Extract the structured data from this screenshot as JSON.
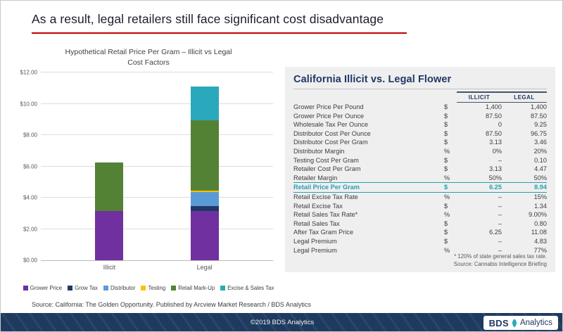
{
  "title": "As a result, legal retailers still face significant cost disadvantage",
  "chart": {
    "title_line1": "Hypothetical Retail Price Per Gram – Illicit vs Legal",
    "title_line2": "Cost Factors"
  },
  "chart_data": {
    "type": "bar",
    "stacked": true,
    "title": "Hypothetical Retail Price Per Gram – Illicit vs Legal Cost Factors",
    "categories": [
      "Illicit",
      "Legal"
    ],
    "series": [
      {
        "name": "Grower Price",
        "color": "#7030A0",
        "values": [
          3.13,
          3.13
        ]
      },
      {
        "name": "Grow Tax",
        "color": "#203864",
        "values": [
          0,
          0.33
        ]
      },
      {
        "name": "Distributor",
        "color": "#5B9BD5",
        "values": [
          0,
          0.91
        ]
      },
      {
        "name": "Testing",
        "color": "#FFC000",
        "values": [
          0,
          0.1
        ]
      },
      {
        "name": "Retail Mark-Up",
        "color": "#548235",
        "values": [
          3.12,
          4.47
        ]
      },
      {
        "name": "Excise & Sales Tax",
        "color": "#2AA9BC",
        "values": [
          0,
          2.14
        ]
      }
    ],
    "ylim": [
      0,
      12
    ],
    "yticks": [
      0,
      2,
      4,
      6,
      8,
      10,
      12
    ],
    "ytick_labels": [
      "$0.00",
      "$2.00",
      "$4.00",
      "$6.00",
      "$8.00",
      "$10.00",
      "$12.00"
    ],
    "grid": true,
    "legend_position": "bottom"
  },
  "table": {
    "title": "California Illicit vs. Legal Flower",
    "col_illicit": "ILLICIT",
    "col_legal": "LEGAL",
    "rows": [
      {
        "label": "Grower Price Per Pound",
        "unit": "$",
        "illicit": "1,400",
        "legal": "1,400"
      },
      {
        "label": "Grower Price Per Ounce",
        "unit": "$",
        "illicit": "87.50",
        "legal": "87.50"
      },
      {
        "label": "Wholesale Tax Per Ounce",
        "unit": "$",
        "illicit": "0",
        "legal": "9.25"
      },
      {
        "label": "Distributor Cost Per Ounce",
        "unit": "$",
        "illicit": "87.50",
        "legal": "96.75"
      },
      {
        "label": "Distributor Cost Per Gram",
        "unit": "$",
        "illicit": "3.13",
        "legal": "3.46"
      },
      {
        "label": "Distributor Margin",
        "unit": "%",
        "illicit": "0%",
        "legal": "20%"
      },
      {
        "label": "Testing Cost Per Gram",
        "unit": "$",
        "illicit": "–",
        "legal": "0.10"
      },
      {
        "label": "Retailer Cost Per Gram",
        "unit": "$",
        "illicit": "3.13",
        "legal": "4.47"
      },
      {
        "label": "Retailer Margin",
        "unit": "%",
        "illicit": "50%",
        "legal": "50%"
      },
      {
        "label": "Retail Price Per Gram",
        "unit": "$",
        "illicit": "6.25",
        "legal": "8.94",
        "highlight": true
      },
      {
        "label": "Retail Excise Tax Rate",
        "unit": "%",
        "illicit": "–",
        "legal": "15%"
      },
      {
        "label": "Retail Excise Tax",
        "unit": "$",
        "illicit": "–",
        "legal": "1.34"
      },
      {
        "label": "Retail Sales Tax Rate*",
        "unit": "%",
        "illicit": "–",
        "legal": "9.00%"
      },
      {
        "label": "Retail Sales Tax",
        "unit": "$",
        "illicit": "–",
        "legal": "0.80"
      },
      {
        "label": "After Tax Gram Price",
        "unit": "$",
        "illicit": "6.25",
        "legal": "11.08"
      },
      {
        "label": "Legal Premium",
        "unit": "$",
        "illicit": "–",
        "legal": "4.83"
      },
      {
        "label": "Legal Premium",
        "unit": "%",
        "illicit": "–",
        "legal": "77%"
      }
    ],
    "footnote": "* 120% of state general sales tax rate.",
    "source": "Source: Cannabis Intelligence Briefing"
  },
  "footer": {
    "source_line": "Source: California: The Golden Opportunity. Published by Arcview Market Research / BDS Analytics",
    "copyright": "©2019 BDS Analytics",
    "logo": {
      "bds": "BDS",
      "analytics": "Analytics"
    }
  },
  "colors": {
    "title_accent": "#C00000",
    "navy": "#1F3864",
    "highlight_teal": "#2A9FAE",
    "footer_bg": "#1E3A5F",
    "panel_bg": "#EFEFEF"
  }
}
